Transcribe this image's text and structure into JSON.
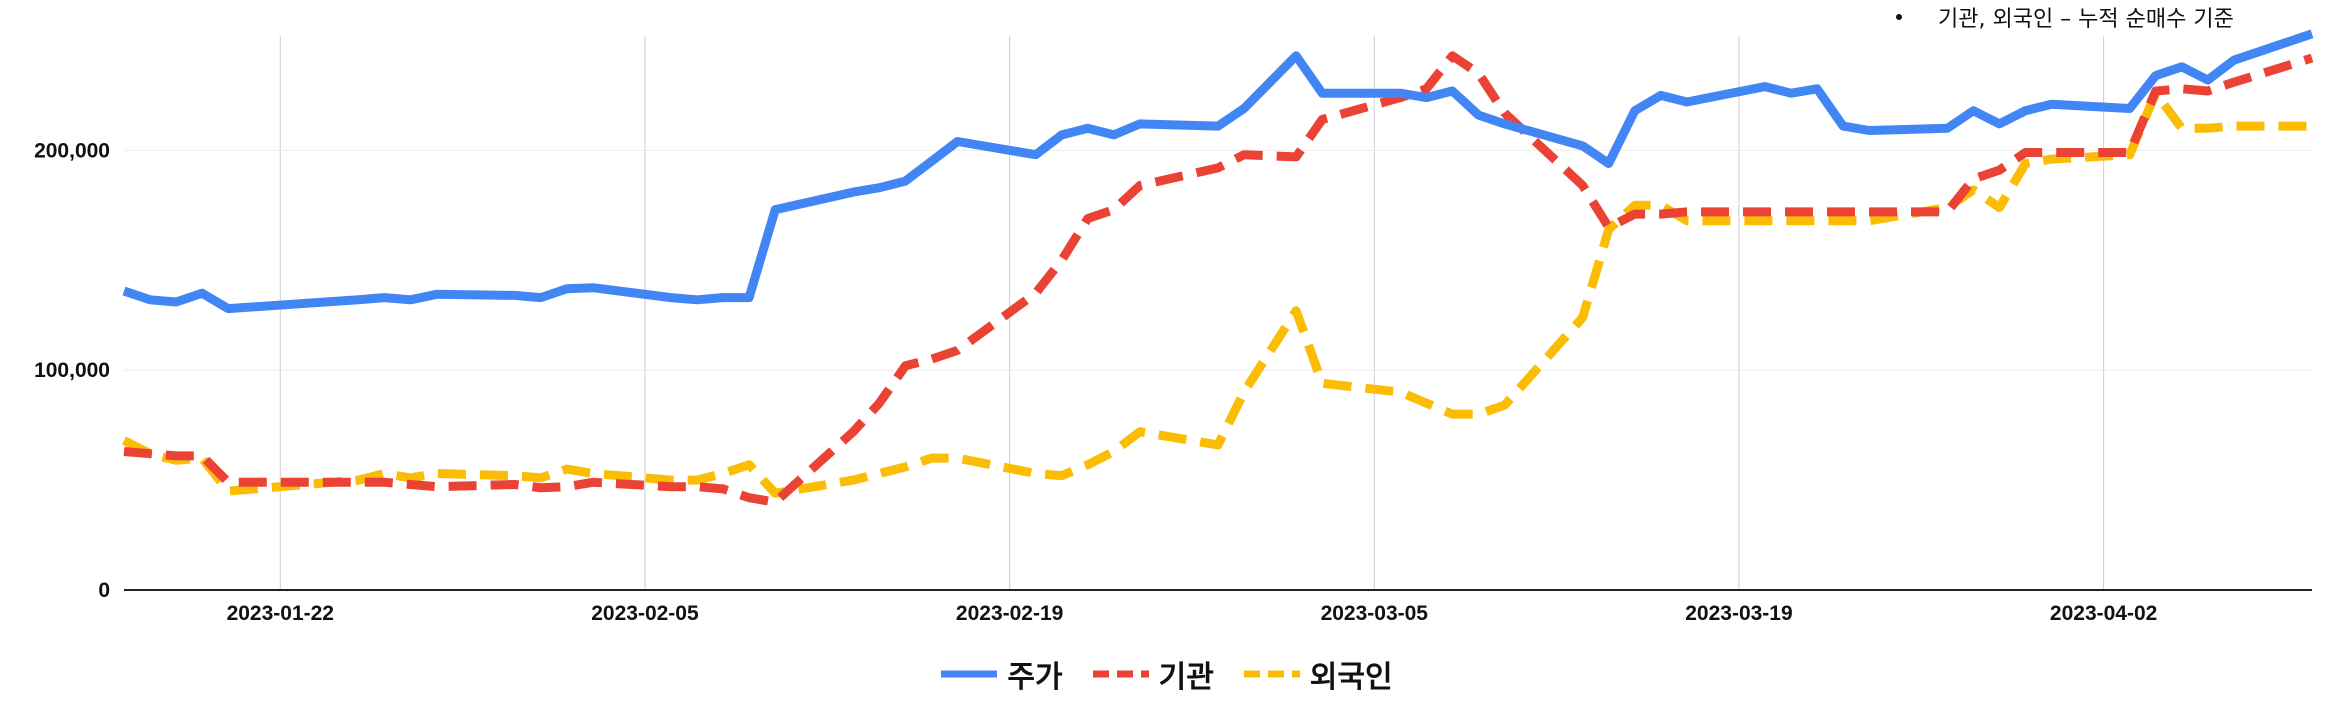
{
  "note": "기관, 외국인 – 누적 순매수 기준",
  "chart_data": {
    "type": "line",
    "x_type": "date",
    "x_ticks": [
      "2023-01-22",
      "2023-02-05",
      "2023-02-19",
      "2023-03-05",
      "2023-03-19",
      "2023-04-02"
    ],
    "xlim": [
      "2023-01-16",
      "2023-04-10"
    ],
    "y_ticks": [
      0,
      100000,
      200000
    ],
    "y_tick_labels": [
      "0",
      "100,000",
      "200,000"
    ],
    "ylim": [
      0,
      252000
    ],
    "grid": {
      "vertical": true,
      "horizontal": true
    },
    "legend": "bottom",
    "series": [
      {
        "name": "주가",
        "color": "#4285F4",
        "dash": "solid",
        "points": [
          [
            "2023-01-16",
            136000
          ],
          [
            "2023-01-17",
            132000
          ],
          [
            "2023-01-18",
            131000
          ],
          [
            "2023-01-19",
            135000
          ],
          [
            "2023-01-20",
            128000
          ],
          [
            "2023-01-25",
            132000
          ],
          [
            "2023-01-26",
            133000
          ],
          [
            "2023-01-27",
            132000
          ],
          [
            "2023-01-28",
            134500
          ],
          [
            "2023-01-31",
            134000
          ],
          [
            "2023-02-01",
            133000
          ],
          [
            "2023-02-02",
            137000
          ],
          [
            "2023-02-03",
            137500
          ],
          [
            "2023-02-06",
            133000
          ],
          [
            "2023-02-07",
            132000
          ],
          [
            "2023-02-08",
            133000
          ],
          [
            "2023-02-09",
            133000
          ],
          [
            "2023-02-10",
            173000
          ],
          [
            "2023-02-13",
            181000
          ],
          [
            "2023-02-14",
            183000
          ],
          [
            "2023-02-15",
            186000
          ],
          [
            "2023-02-16",
            195000
          ],
          [
            "2023-02-17",
            204000
          ],
          [
            "2023-02-20",
            198000
          ],
          [
            "2023-02-21",
            207000
          ],
          [
            "2023-02-22",
            210000
          ],
          [
            "2023-02-23",
            207000
          ],
          [
            "2023-02-24",
            212000
          ],
          [
            "2023-02-27",
            211000
          ],
          [
            "2023-02-28",
            219000
          ],
          [
            "2023-03-02",
            243000
          ],
          [
            "2023-03-03",
            226000
          ],
          [
            "2023-03-06",
            226000
          ],
          [
            "2023-03-07",
            224000
          ],
          [
            "2023-03-08",
            227000
          ],
          [
            "2023-03-09",
            216000
          ],
          [
            "2023-03-10",
            212000
          ],
          [
            "2023-03-13",
            202000
          ],
          [
            "2023-03-14",
            194000
          ],
          [
            "2023-03-15",
            218000
          ],
          [
            "2023-03-16",
            225000
          ],
          [
            "2023-03-17",
            222000
          ],
          [
            "2023-03-20",
            229000
          ],
          [
            "2023-03-21",
            226000
          ],
          [
            "2023-03-22",
            228000
          ],
          [
            "2023-03-23",
            211000
          ],
          [
            "2023-03-24",
            209000
          ],
          [
            "2023-03-27",
            210000
          ],
          [
            "2023-03-28",
            218000
          ],
          [
            "2023-03-29",
            212000
          ],
          [
            "2023-03-30",
            218000
          ],
          [
            "2023-03-31",
            221000
          ],
          [
            "2023-04-03",
            219000
          ],
          [
            "2023-04-04",
            234000
          ],
          [
            "2023-04-05",
            238000
          ],
          [
            "2023-04-06",
            232000
          ],
          [
            "2023-04-07",
            241000
          ],
          [
            "2023-04-10",
            253000
          ]
        ]
      },
      {
        "name": "기관",
        "color": "#EA4335",
        "dash": "dashed",
        "points": [
          [
            "2023-01-16",
            63000
          ],
          [
            "2023-01-17",
            62000
          ],
          [
            "2023-01-18",
            61000
          ],
          [
            "2023-01-19",
            61000
          ],
          [
            "2023-01-20",
            49000
          ],
          [
            "2023-01-25",
            49000
          ],
          [
            "2023-01-26",
            49000
          ],
          [
            "2023-01-27",
            48000
          ],
          [
            "2023-01-28",
            47000
          ],
          [
            "2023-01-31",
            48000
          ],
          [
            "2023-02-01",
            46500
          ],
          [
            "2023-02-02",
            47000
          ],
          [
            "2023-02-03",
            49000
          ],
          [
            "2023-02-06",
            47000
          ],
          [
            "2023-02-07",
            47000
          ],
          [
            "2023-02-08",
            46000
          ],
          [
            "2023-02-09",
            42000
          ],
          [
            "2023-02-10",
            40000
          ],
          [
            "2023-02-13",
            72000
          ],
          [
            "2023-02-14",
            85000
          ],
          [
            "2023-02-15",
            102000
          ],
          [
            "2023-02-16",
            105000
          ],
          [
            "2023-02-17",
            109000
          ],
          [
            "2023-02-20",
            135000
          ],
          [
            "2023-02-21",
            150000
          ],
          [
            "2023-02-22",
            169000
          ],
          [
            "2023-02-23",
            173000
          ],
          [
            "2023-02-24",
            184000
          ],
          [
            "2023-02-27",
            192000
          ],
          [
            "2023-02-28",
            198000
          ],
          [
            "2023-03-02",
            197000
          ],
          [
            "2023-03-03",
            214000
          ],
          [
            "2023-03-06",
            224000
          ],
          [
            "2023-03-07",
            228000
          ],
          [
            "2023-03-08",
            243000
          ],
          [
            "2023-03-09",
            235000
          ],
          [
            "2023-03-10",
            217000
          ],
          [
            "2023-03-13",
            184000
          ],
          [
            "2023-03-14",
            165000
          ],
          [
            "2023-03-15",
            171000
          ],
          [
            "2023-03-16",
            171000
          ],
          [
            "2023-03-17",
            172000
          ],
          [
            "2023-03-20",
            172000
          ],
          [
            "2023-03-21",
            172000
          ],
          [
            "2023-03-22",
            172000
          ],
          [
            "2023-03-23",
            172000
          ],
          [
            "2023-03-24",
            172000
          ],
          [
            "2023-03-27",
            172000
          ],
          [
            "2023-03-28",
            187000
          ],
          [
            "2023-03-29",
            191000
          ],
          [
            "2023-03-30",
            199000
          ],
          [
            "2023-03-31",
            199000
          ],
          [
            "2023-04-03",
            199000
          ],
          [
            "2023-04-04",
            227000
          ],
          [
            "2023-04-05",
            228000
          ],
          [
            "2023-04-06",
            227000
          ],
          [
            "2023-04-07",
            231000
          ],
          [
            "2023-04-10",
            242000
          ]
        ]
      },
      {
        "name": "외국인",
        "color": "#FBBC04",
        "dash": "dashed",
        "points": [
          [
            "2023-01-16",
            68000
          ],
          [
            "2023-01-17",
            62000
          ],
          [
            "2023-01-18",
            59000
          ],
          [
            "2023-01-19",
            60000
          ],
          [
            "2023-01-20",
            45000
          ],
          [
            "2023-01-25",
            50000
          ],
          [
            "2023-01-26",
            53000
          ],
          [
            "2023-01-27",
            51000
          ],
          [
            "2023-01-28",
            53000
          ],
          [
            "2023-01-31",
            52000
          ],
          [
            "2023-02-01",
            51000
          ],
          [
            "2023-02-02",
            55000
          ],
          [
            "2023-02-03",
            53000
          ],
          [
            "2023-02-06",
            50000
          ],
          [
            "2023-02-07",
            50000
          ],
          [
            "2023-02-08",
            53000
          ],
          [
            "2023-02-09",
            57000
          ],
          [
            "2023-02-10",
            44000
          ],
          [
            "2023-02-13",
            50000
          ],
          [
            "2023-02-14",
            53000
          ],
          [
            "2023-02-15",
            56000
          ],
          [
            "2023-02-16",
            60000
          ],
          [
            "2023-02-17",
            60000
          ],
          [
            "2023-02-20",
            53000
          ],
          [
            "2023-02-21",
            52000
          ],
          [
            "2023-02-22",
            57000
          ],
          [
            "2023-02-23",
            63000
          ],
          [
            "2023-02-24",
            72000
          ],
          [
            "2023-02-27",
            66000
          ],
          [
            "2023-02-28",
            90000
          ],
          [
            "2023-03-02",
            127000
          ],
          [
            "2023-03-03",
            94000
          ],
          [
            "2023-03-06",
            90000
          ],
          [
            "2023-03-07",
            85000
          ],
          [
            "2023-03-08",
            80000
          ],
          [
            "2023-03-09",
            80000
          ],
          [
            "2023-03-10",
            84000
          ],
          [
            "2023-03-13",
            124000
          ],
          [
            "2023-03-14",
            164000
          ],
          [
            "2023-03-15",
            175000
          ],
          [
            "2023-03-16",
            175000
          ],
          [
            "2023-03-17",
            168000
          ],
          [
            "2023-03-20",
            168000
          ],
          [
            "2023-03-21",
            168000
          ],
          [
            "2023-03-22",
            168000
          ],
          [
            "2023-03-23",
            168000
          ],
          [
            "2023-03-24",
            168000
          ],
          [
            "2023-03-27",
            174000
          ],
          [
            "2023-03-28",
            182000
          ],
          [
            "2023-03-29",
            174000
          ],
          [
            "2023-03-30",
            194000
          ],
          [
            "2023-03-31",
            196000
          ],
          [
            "2023-04-03",
            198000
          ],
          [
            "2023-04-04",
            226000
          ],
          [
            "2023-04-05",
            210000
          ],
          [
            "2023-04-06",
            210000
          ],
          [
            "2023-04-07",
            211000
          ],
          [
            "2023-04-10",
            211000
          ]
        ]
      }
    ]
  }
}
